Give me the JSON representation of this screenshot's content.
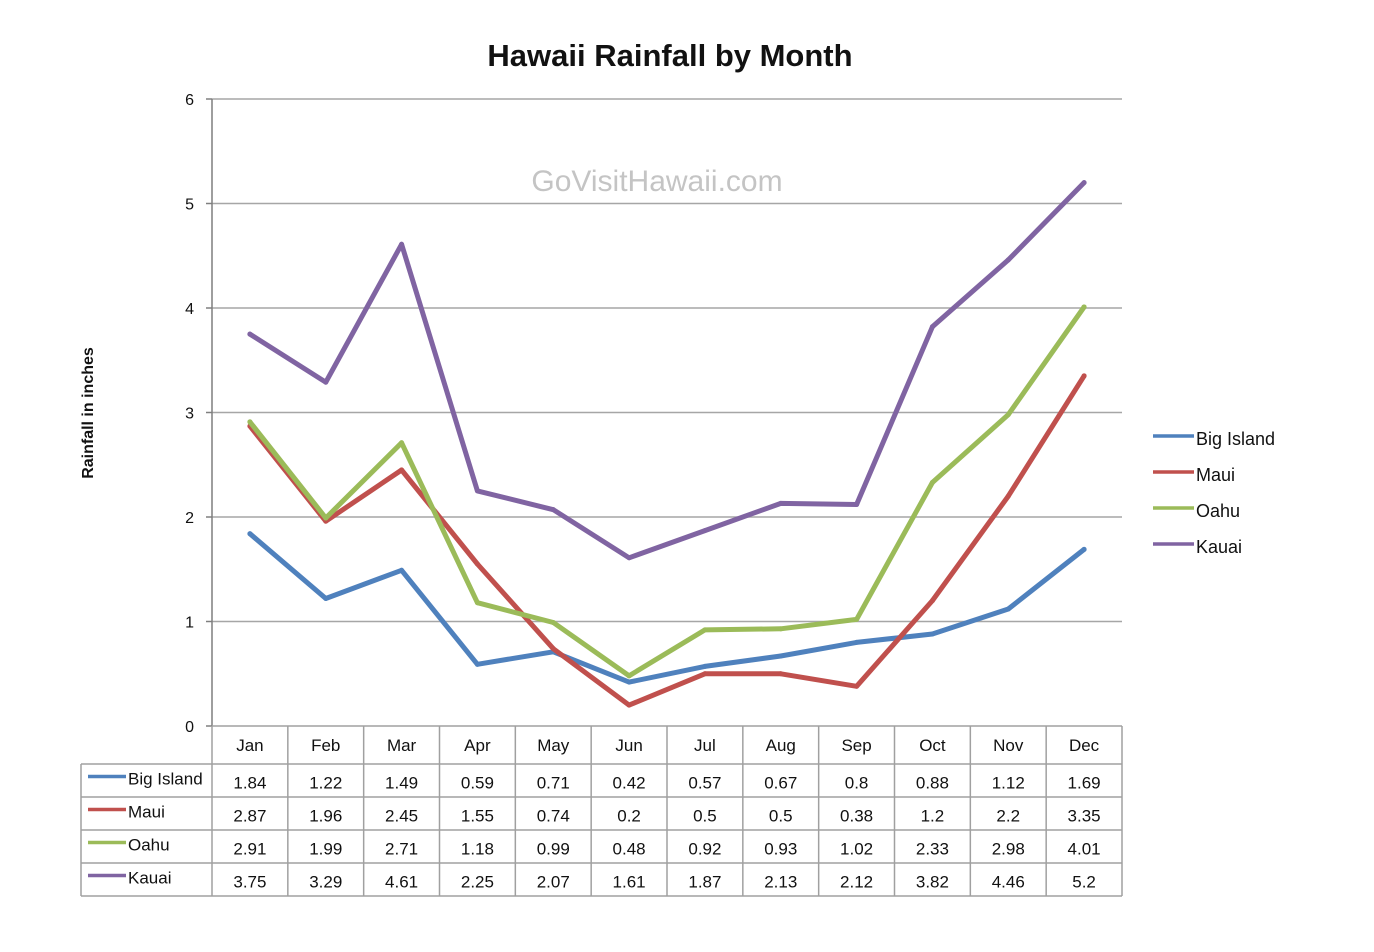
{
  "chart_data": {
    "type": "line",
    "title": "Hawaii Rainfall by Month",
    "ylabel": "Rainfall in inches",
    "xlabel": "",
    "ylim": [
      0,
      6
    ],
    "yticks": [
      "0",
      "1",
      "2",
      "3",
      "4",
      "5",
      "6"
    ],
    "grid": true,
    "legend": "right",
    "watermark": "GoVisitHawaii.com",
    "categories": [
      "Jan",
      "Feb",
      "Mar",
      "Apr",
      "May",
      "Jun",
      "Jul",
      "Aug",
      "Sep",
      "Oct",
      "Nov",
      "Dec"
    ],
    "series": [
      {
        "name": "Big Island",
        "color": "#4f81bd",
        "values": [
          1.84,
          1.22,
          1.49,
          0.59,
          0.71,
          0.42,
          0.57,
          0.67,
          0.8,
          0.88,
          1.12,
          1.69
        ],
        "labels": [
          "1.84",
          "1.22",
          "1.49",
          "0.59",
          "0.71",
          "0.42",
          "0.57",
          "0.67",
          "0.8",
          "0.88",
          "1.12",
          "1.69"
        ]
      },
      {
        "name": "Maui",
        "color": "#c0504d",
        "values": [
          2.87,
          1.96,
          2.45,
          1.55,
          0.74,
          0.2,
          0.5,
          0.5,
          0.38,
          1.2,
          2.2,
          3.35
        ],
        "labels": [
          "2.87",
          "1.96",
          "2.45",
          "1.55",
          "0.74",
          "0.2",
          "0.5",
          "0.5",
          "0.38",
          "1.2",
          "2.2",
          "3.35"
        ]
      },
      {
        "name": "Oahu",
        "color": "#9bbb59",
        "values": [
          2.91,
          1.99,
          2.71,
          1.18,
          0.99,
          0.48,
          0.92,
          0.93,
          1.02,
          2.33,
          2.98,
          4.01
        ],
        "labels": [
          "2.91",
          "1.99",
          "2.71",
          "1.18",
          "0.99",
          "0.48",
          "0.92",
          "0.93",
          "1.02",
          "2.33",
          "2.98",
          "4.01"
        ]
      },
      {
        "name": "Kauai",
        "color": "#8064a2",
        "values": [
          3.75,
          3.29,
          4.61,
          2.25,
          2.07,
          1.61,
          1.87,
          2.13,
          2.12,
          3.82,
          4.46,
          5.2
        ],
        "labels": [
          "3.75",
          "3.29",
          "4.61",
          "2.25",
          "2.07",
          "1.61",
          "1.87",
          "2.13",
          "2.12",
          "3.82",
          "4.46",
          "5.2"
        ]
      }
    ]
  }
}
